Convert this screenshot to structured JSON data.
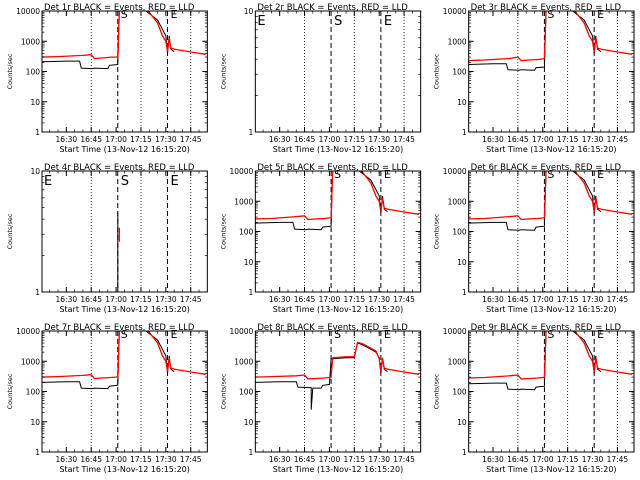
{
  "figure": {
    "x_tick_labels": [
      "16:30",
      "16:45",
      "17:00",
      "17:15",
      "17:30",
      "17:45"
    ],
    "x_axis_label": "Start Time (13-Nov-12 16:15:20)",
    "y_axis_label": "Counts/sec",
    "legend_text": "BLACK = Events, RED = LLD",
    "marker_labels": {
      "E": "E",
      "S": "S"
    }
  },
  "colors": {
    "events": "#000000",
    "lld": "#ff0000",
    "axes": "#000000",
    "background": "#ffffff"
  },
  "chart_data": [
    {
      "type": "line",
      "title": "Det 1r",
      "x_unit": "time (HH:MM)",
      "xlim": [
        "16:15:20",
        "17:55"
      ],
      "ylog": true,
      "ylim": [
        1,
        10000
      ],
      "y_tick_labels": [
        "1",
        "10",
        "100",
        "1000",
        "10000"
      ],
      "dotted_vlines": [
        "16:45",
        "17:15",
        "17:45"
      ],
      "dashed_vlines": [
        "17:01",
        "17:31"
      ],
      "markers": [
        {
          "label": "S",
          "x": "17:01"
        },
        {
          "label": "E",
          "x": "17:31"
        }
      ],
      "series": [
        {
          "name": "BLACK = Events",
          "x": [
            "16:15",
            "16:30",
            "16:38",
            "16:39",
            "16:46",
            "16:47",
            "16:55",
            "16:56",
            "17:01",
            "17:02",
            "17:10",
            "17:17",
            "17:25",
            "17:30",
            "17:31",
            "17:32",
            "17:33",
            "17:34",
            "17:35"
          ],
          "y": [
            210,
            220,
            220,
            130,
            125,
            130,
            125,
            160,
            170,
            12000,
            12000,
            11000,
            5000,
            1500,
            400,
            1500,
            550,
            500,
            450
          ]
        },
        {
          "name": "RED = LLD",
          "x": [
            "16:15",
            "16:25",
            "16:40",
            "16:45",
            "16:47",
            "16:52",
            "16:57",
            "17:00",
            "17:01",
            "17:02",
            "17:12",
            "17:17",
            "17:20",
            "17:25",
            "17:28",
            "17:30",
            "17:31",
            "17:32",
            "17:33",
            "17:35",
            "17:45",
            "17:54"
          ],
          "y": [
            300,
            310,
            340,
            360,
            270,
            280,
            300,
            300,
            310,
            12000,
            12000,
            12000,
            9000,
            4000,
            1500,
            1000,
            450,
            1300,
            600,
            550,
            440,
            370
          ]
        }
      ]
    },
    {
      "type": "line",
      "title": "Det 2r",
      "x_unit": "time (HH:MM)",
      "xlim": [
        "16:15:20",
        "17:55"
      ],
      "ylog": true,
      "ylim": [
        1,
        10
      ],
      "y_tick_labels": [
        "1",
        "10"
      ],
      "dotted_vlines": [
        "16:45",
        "17:15",
        "17:45"
      ],
      "dashed_vlines": [
        "17:01",
        "17:31"
      ],
      "markers": [
        {
          "label": "E",
          "x": "16:15:20"
        },
        {
          "label": "S",
          "x": "17:01"
        },
        {
          "label": "E",
          "x": "17:31"
        }
      ],
      "series": []
    },
    {
      "type": "line",
      "title": "Det 3r",
      "x_unit": "time (HH:MM)",
      "xlim": [
        "16:15:20",
        "17:55"
      ],
      "ylog": true,
      "ylim": [
        1,
        10000
      ],
      "y_tick_labels": [
        "1",
        "10",
        "100",
        "1000",
        "10000"
      ],
      "dotted_vlines": [
        "16:45",
        "17:15",
        "17:45"
      ],
      "dashed_vlines": [
        "17:01",
        "17:31"
      ],
      "markers": [
        {
          "label": "S",
          "x": "17:01"
        },
        {
          "label": "E",
          "x": "17:31"
        }
      ],
      "series": [
        {
          "name": "BLACK = Events",
          "x": [
            "16:15",
            "16:30",
            "16:38",
            "16:39",
            "16:46",
            "16:47",
            "16:55",
            "16:56",
            "17:01",
            "17:02",
            "17:10",
            "17:17",
            "17:25",
            "17:30",
            "17:31",
            "17:32",
            "17:33",
            "17:34",
            "17:35"
          ],
          "y": [
            170,
            180,
            180,
            115,
            110,
            115,
            110,
            135,
            140,
            12000,
            12000,
            11000,
            5000,
            1500,
            400,
            1500,
            550,
            500,
            450
          ]
        },
        {
          "name": "RED = LLD",
          "x": [
            "16:15",
            "16:25",
            "16:40",
            "16:45",
            "16:47",
            "16:52",
            "16:57",
            "17:00",
            "17:01",
            "17:02",
            "17:12",
            "17:17",
            "17:20",
            "17:25",
            "17:28",
            "17:30",
            "17:31",
            "17:32",
            "17:33",
            "17:35",
            "17:45",
            "17:54"
          ],
          "y": [
            230,
            240,
            270,
            300,
            230,
            240,
            250,
            260,
            270,
            12000,
            12000,
            12000,
            9000,
            4000,
            1500,
            1000,
            450,
            1300,
            600,
            550,
            440,
            370
          ]
        }
      ]
    },
    {
      "type": "line",
      "title": "Det 4r",
      "x_unit": "time (HH:MM)",
      "xlim": [
        "16:15:20",
        "17:55"
      ],
      "ylog": true,
      "ylim": [
        1,
        10
      ],
      "y_tick_labels": [
        "1",
        "10"
      ],
      "dotted_vlines": [
        "16:45",
        "17:15",
        "17:45"
      ],
      "dashed_vlines": [
        "17:01",
        "17:31"
      ],
      "markers": [
        {
          "label": "E",
          "x": "16:15:20"
        },
        {
          "label": "S",
          "x": "17:01"
        },
        {
          "label": "E",
          "x": "17:31"
        }
      ],
      "series": [
        {
          "name": "BLACK = Events",
          "x": [
            "17:01",
            "17:01"
          ],
          "y": [
            1,
            4.5
          ]
        },
        {
          "name": "RED = LLD",
          "x": [
            "17:02",
            "17:02"
          ],
          "y": [
            2.6,
            3.4
          ]
        }
      ]
    },
    {
      "type": "line",
      "title": "Det 5r",
      "x_unit": "time (HH:MM)",
      "xlim": [
        "16:15:20",
        "17:55"
      ],
      "ylog": true,
      "ylim": [
        1,
        10000
      ],
      "y_tick_labels": [
        "1",
        "10",
        "100",
        "1000",
        "10000"
      ],
      "dotted_vlines": [
        "16:45",
        "17:15",
        "17:45"
      ],
      "dashed_vlines": [
        "17:01",
        "17:31"
      ],
      "markers": [
        {
          "label": "S",
          "x": "17:01"
        },
        {
          "label": "E",
          "x": "17:31"
        }
      ],
      "series": [
        {
          "name": "BLACK = Events",
          "x": [
            "16:15",
            "16:30",
            "16:38",
            "16:39",
            "16:46",
            "16:47",
            "16:55",
            "16:56",
            "17:01",
            "17:02",
            "17:10",
            "17:17",
            "17:25",
            "17:30",
            "17:31",
            "17:32",
            "17:33",
            "17:34",
            "17:35"
          ],
          "y": [
            190,
            200,
            200,
            120,
            115,
            120,
            115,
            140,
            150,
            12000,
            12000,
            11000,
            5000,
            1500,
            400,
            1500,
            550,
            500,
            450
          ]
        },
        {
          "name": "RED = LLD",
          "x": [
            "16:15",
            "16:25",
            "16:40",
            "16:45",
            "16:47",
            "16:52",
            "16:57",
            "17:00",
            "17:01",
            "17:02",
            "17:12",
            "17:17",
            "17:20",
            "17:25",
            "17:28",
            "17:30",
            "17:31",
            "17:32",
            "17:33",
            "17:35",
            "17:45",
            "17:54"
          ],
          "y": [
            260,
            270,
            310,
            330,
            250,
            260,
            270,
            280,
            290,
            12000,
            12000,
            12000,
            9000,
            4000,
            1500,
            1000,
            450,
            1300,
            600,
            550,
            440,
            370
          ]
        }
      ]
    },
    {
      "type": "line",
      "title": "Det 6r",
      "x_unit": "time (HH:MM)",
      "xlim": [
        "16:15:20",
        "17:55"
      ],
      "ylog": true,
      "ylim": [
        1,
        10000
      ],
      "y_tick_labels": [
        "1",
        "10",
        "100",
        "1000",
        "10000"
      ],
      "dotted_vlines": [
        "16:45",
        "17:15",
        "17:45"
      ],
      "dashed_vlines": [
        "17:01",
        "17:31"
      ],
      "markers": [
        {
          "label": "S",
          "x": "17:01"
        },
        {
          "label": "E",
          "x": "17:31"
        }
      ],
      "series": [
        {
          "name": "BLACK = Events",
          "x": [
            "16:15",
            "16:30",
            "16:38",
            "16:39",
            "16:46",
            "16:47",
            "16:55",
            "16:56",
            "17:01",
            "17:02",
            "17:10",
            "17:17",
            "17:25",
            "17:30",
            "17:31",
            "17:32",
            "17:33",
            "17:34",
            "17:35"
          ],
          "y": [
            190,
            200,
            200,
            115,
            110,
            115,
            110,
            140,
            150,
            12000,
            12000,
            11000,
            5000,
            1500,
            400,
            1500,
            550,
            500,
            450
          ]
        },
        {
          "name": "RED = LLD",
          "x": [
            "16:15",
            "16:25",
            "16:40",
            "16:45",
            "16:47",
            "16:52",
            "16:57",
            "17:00",
            "17:01",
            "17:02",
            "17:12",
            "17:17",
            "17:20",
            "17:25",
            "17:28",
            "17:30",
            "17:31",
            "17:32",
            "17:33",
            "17:35",
            "17:45",
            "17:54"
          ],
          "y": [
            260,
            270,
            310,
            330,
            250,
            260,
            270,
            280,
            290,
            12000,
            12000,
            12000,
            9000,
            4000,
            1500,
            1000,
            450,
            1300,
            600,
            550,
            440,
            370
          ]
        }
      ]
    },
    {
      "type": "line",
      "title": "Det 7r",
      "x_unit": "time (HH:MM)",
      "xlim": [
        "16:15:20",
        "17:55"
      ],
      "ylog": true,
      "ylim": [
        1,
        10000
      ],
      "y_tick_labels": [
        "1",
        "10",
        "100",
        "1000",
        "10000"
      ],
      "dotted_vlines": [
        "16:45",
        "17:15",
        "17:45"
      ],
      "dashed_vlines": [
        "17:01",
        "17:31"
      ],
      "markers": [
        {
          "label": "S",
          "x": "17:01"
        },
        {
          "label": "E",
          "x": "17:31"
        }
      ],
      "series": [
        {
          "name": "BLACK = Events",
          "x": [
            "16:15",
            "16:30",
            "16:38",
            "16:39",
            "16:46",
            "16:47",
            "16:55",
            "16:56",
            "17:01",
            "17:02",
            "17:10",
            "17:17",
            "17:25",
            "17:30",
            "17:31",
            "17:32",
            "17:33",
            "17:34",
            "17:35"
          ],
          "y": [
            200,
            210,
            210,
            130,
            125,
            130,
            125,
            150,
            160,
            12000,
            12000,
            11000,
            5000,
            1500,
            400,
            1500,
            550,
            500,
            450
          ]
        },
        {
          "name": "RED = LLD",
          "x": [
            "16:15",
            "16:25",
            "16:40",
            "16:45",
            "16:47",
            "16:52",
            "16:57",
            "17:00",
            "17:01",
            "17:02",
            "17:12",
            "17:17",
            "17:20",
            "17:25",
            "17:28",
            "17:30",
            "17:31",
            "17:32",
            "17:33",
            "17:35",
            "17:45",
            "17:54"
          ],
          "y": [
            300,
            310,
            340,
            360,
            270,
            280,
            290,
            300,
            310,
            12000,
            12000,
            12000,
            9000,
            4000,
            1500,
            1000,
            450,
            1300,
            600,
            550,
            440,
            370
          ]
        }
      ]
    },
    {
      "type": "line",
      "title": "Det 8r",
      "x_unit": "time (HH:MM)",
      "xlim": [
        "16:15:20",
        "17:55"
      ],
      "ylog": true,
      "ylim": [
        1,
        10000
      ],
      "y_tick_labels": [
        "1",
        "10",
        "100",
        "1000",
        "10000"
      ],
      "dotted_vlines": [
        "16:45",
        "17:15",
        "17:45"
      ],
      "dashed_vlines": [
        "17:01",
        "17:31"
      ],
      "markers": [
        {
          "label": "S",
          "x": "17:01"
        },
        {
          "label": "E",
          "x": "17:31"
        }
      ],
      "series": [
        {
          "name": "BLACK = Events",
          "x": [
            "16:15",
            "16:30",
            "16:40",
            "16:41",
            "16:48",
            "16:49",
            "16:49",
            "16:50",
            "16:55",
            "16:56",
            "17:00",
            "17:01",
            "17:10",
            "17:15",
            "17:17",
            "17:20",
            "17:28",
            "17:30",
            "17:31",
            "17:32",
            "17:33",
            "17:34",
            "17:35"
          ],
          "y": [
            200,
            210,
            210,
            140,
            135,
            135,
            25,
            130,
            130,
            160,
            170,
            1200,
            1300,
            1300,
            4000,
            3500,
            2000,
            1300,
            400,
            1300,
            550,
            500,
            450
          ]
        },
        {
          "name": "RED = LLD",
          "x": [
            "16:15",
            "16:25",
            "16:40",
            "16:45",
            "16:47",
            "16:52",
            "16:57",
            "17:00",
            "17:01",
            "17:02",
            "17:10",
            "17:15",
            "17:17",
            "17:20",
            "17:28",
            "17:30",
            "17:31",
            "17:32",
            "17:33",
            "17:35",
            "17:45",
            "17:54"
          ],
          "y": [
            300,
            310,
            330,
            350,
            260,
            270,
            280,
            290,
            300,
            1300,
            1400,
            1400,
            4200,
            3800,
            2200,
            1200,
            450,
            1300,
            600,
            550,
            440,
            370
          ]
        }
      ]
    },
    {
      "type": "line",
      "title": "Det 9r",
      "x_unit": "time (HH:MM)",
      "xlim": [
        "16:15:20",
        "17:55"
      ],
      "ylog": true,
      "ylim": [
        1,
        10000
      ],
      "y_tick_labels": [
        "1",
        "10",
        "100",
        "1000",
        "10000"
      ],
      "dotted_vlines": [
        "16:45",
        "17:15",
        "17:45"
      ],
      "dashed_vlines": [
        "17:01",
        "17:31"
      ],
      "markers": [
        {
          "label": "S",
          "x": "17:01"
        },
        {
          "label": "E",
          "x": "17:31"
        }
      ],
      "series": [
        {
          "name": "BLACK = Events",
          "x": [
            "16:15",
            "16:30",
            "16:38",
            "16:39",
            "16:46",
            "16:47",
            "16:55",
            "16:56",
            "17:01",
            "17:02",
            "17:10",
            "17:17",
            "17:25",
            "17:30",
            "17:31",
            "17:32",
            "17:33",
            "17:34",
            "17:35"
          ],
          "y": [
            180,
            190,
            190,
            120,
            115,
            120,
            115,
            140,
            150,
            12000,
            12000,
            11000,
            5000,
            1500,
            400,
            1500,
            550,
            500,
            450
          ]
        },
        {
          "name": "RED = LLD",
          "x": [
            "16:15",
            "16:25",
            "16:40",
            "16:45",
            "16:47",
            "16:52",
            "16:57",
            "17:00",
            "17:01",
            "17:02",
            "17:12",
            "17:17",
            "17:20",
            "17:25",
            "17:28",
            "17:30",
            "17:31",
            "17:32",
            "17:33",
            "17:35",
            "17:45",
            "17:54"
          ],
          "y": [
            280,
            290,
            330,
            350,
            260,
            270,
            280,
            290,
            300,
            12000,
            12000,
            12000,
            9000,
            4000,
            1500,
            1000,
            450,
            1300,
            600,
            550,
            440,
            370
          ]
        }
      ]
    }
  ]
}
